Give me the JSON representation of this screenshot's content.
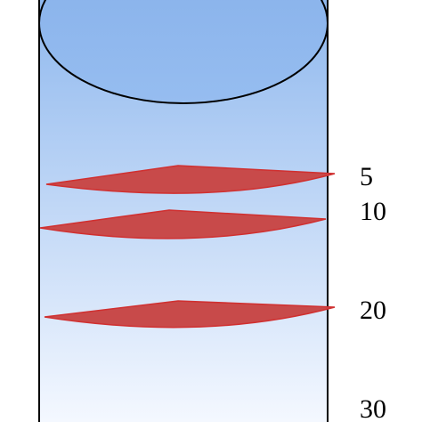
{
  "colors": {
    "cylinder_top": "#8fb8ee",
    "cylinder_bottom": "#f4f8ff",
    "cylinder_outline": "#000000",
    "slice_fill": "#c84a4a",
    "slice_edge": "#d03030"
  },
  "depth_markers": [
    {
      "label": "5",
      "depth": 5
    },
    {
      "label": "10",
      "depth": 10
    },
    {
      "label": "20",
      "depth": 20
    },
    {
      "label": "30",
      "depth": 30
    }
  ]
}
